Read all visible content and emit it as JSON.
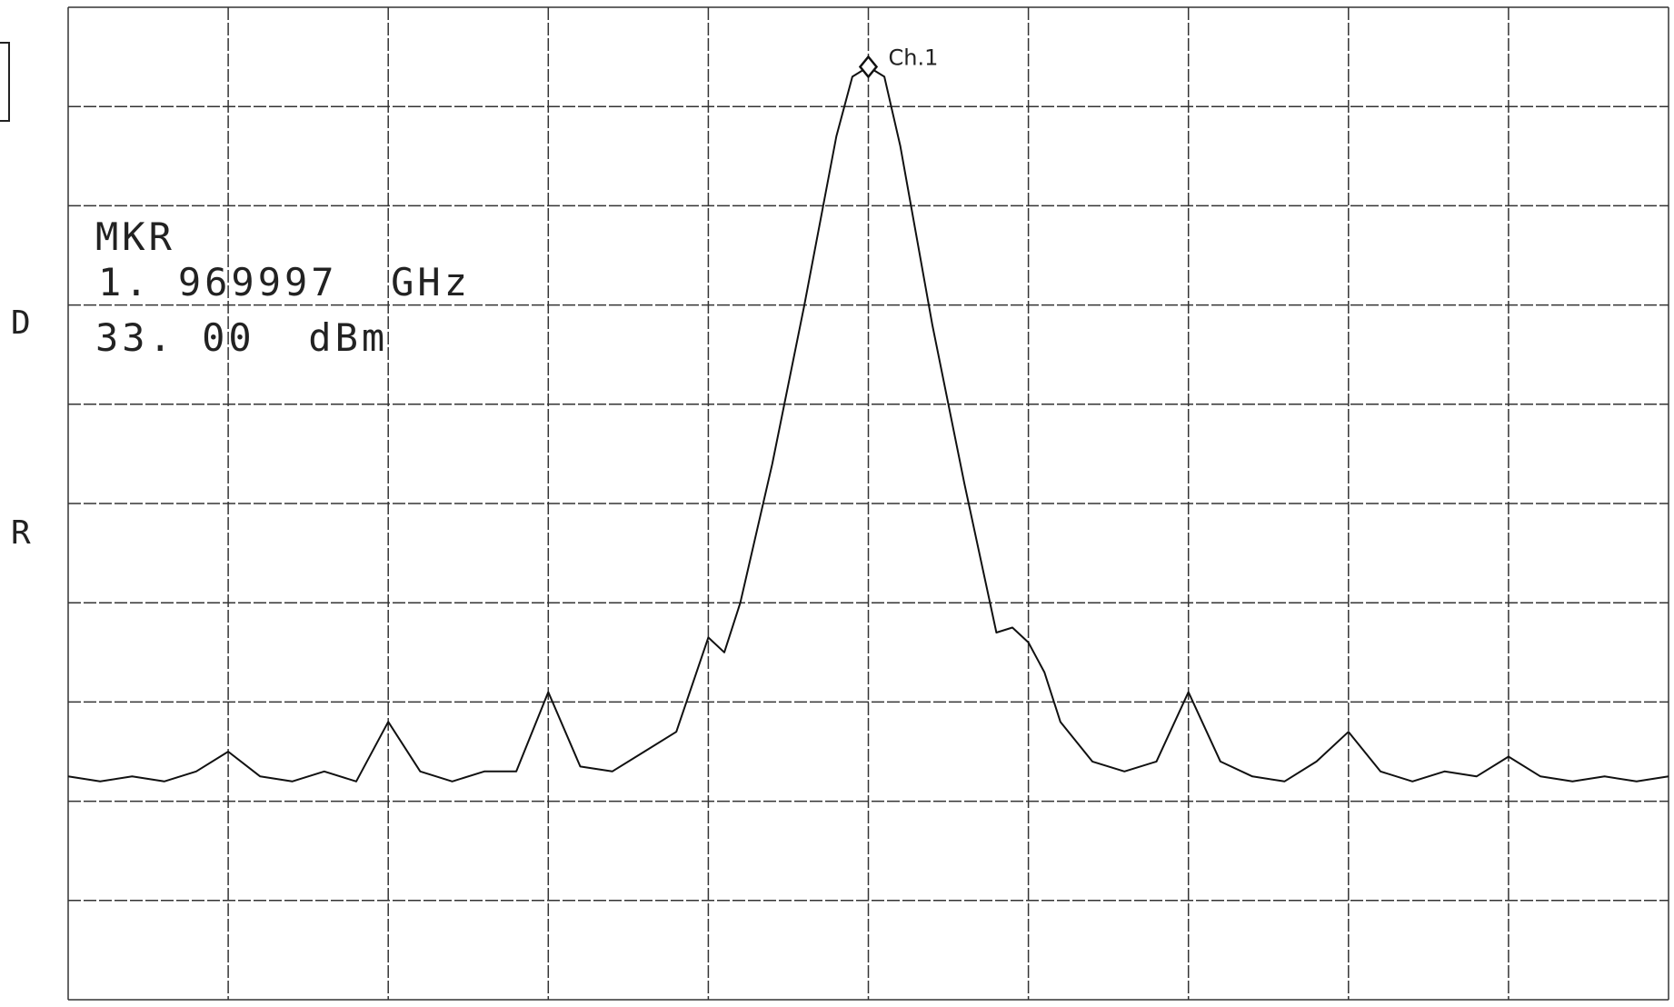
{
  "chart_data": {
    "type": "line",
    "title": "",
    "xlabel": "",
    "ylabel": "",
    "grid": true,
    "grid_divisions": {
      "x": 10,
      "y": 10
    },
    "xlim": [
      0,
      10
    ],
    "ylim": [
      0,
      10
    ],
    "readout": {
      "label": "MKR",
      "frequency": "1. 969997  GHz",
      "level": "33. 00  dBm"
    },
    "left_annotations": [
      "D",
      "R"
    ],
    "marker": {
      "label": "Ch.1",
      "x": 5.0,
      "y": 9.4
    },
    "series": [
      {
        "color": "#111111",
        "x": [
          0.0,
          0.2,
          0.4,
          0.6,
          0.8,
          1.0,
          1.2,
          1.4,
          1.6,
          1.8,
          2.0,
          2.2,
          2.4,
          2.6,
          2.8,
          3.0,
          3.2,
          3.4,
          3.6,
          3.8,
          4.0,
          4.1,
          4.2,
          4.4,
          4.6,
          4.8,
          4.9,
          5.0,
          5.1,
          5.2,
          5.4,
          5.6,
          5.8,
          5.9,
          6.0,
          6.1,
          6.2,
          6.4,
          6.6,
          6.8,
          7.0,
          7.2,
          7.4,
          7.6,
          7.8,
          8.0,
          8.2,
          8.4,
          8.6,
          8.8,
          9.0,
          9.2,
          9.4,
          9.6,
          9.8,
          10.0
        ],
        "y": [
          2.25,
          2.2,
          2.25,
          2.2,
          2.3,
          2.5,
          2.25,
          2.2,
          2.3,
          2.2,
          2.8,
          2.3,
          2.2,
          2.3,
          2.3,
          3.1,
          2.35,
          2.3,
          2.5,
          2.7,
          3.65,
          3.5,
          4.0,
          5.4,
          7.0,
          8.7,
          9.3,
          9.4,
          9.3,
          8.6,
          6.8,
          5.2,
          3.7,
          3.75,
          3.6,
          3.3,
          2.8,
          2.4,
          2.3,
          2.4,
          3.1,
          2.4,
          2.25,
          2.2,
          2.4,
          2.7,
          2.3,
          2.2,
          2.3,
          2.25,
          2.45,
          2.25,
          2.2,
          2.25,
          2.2,
          2.25
        ]
      }
    ]
  }
}
